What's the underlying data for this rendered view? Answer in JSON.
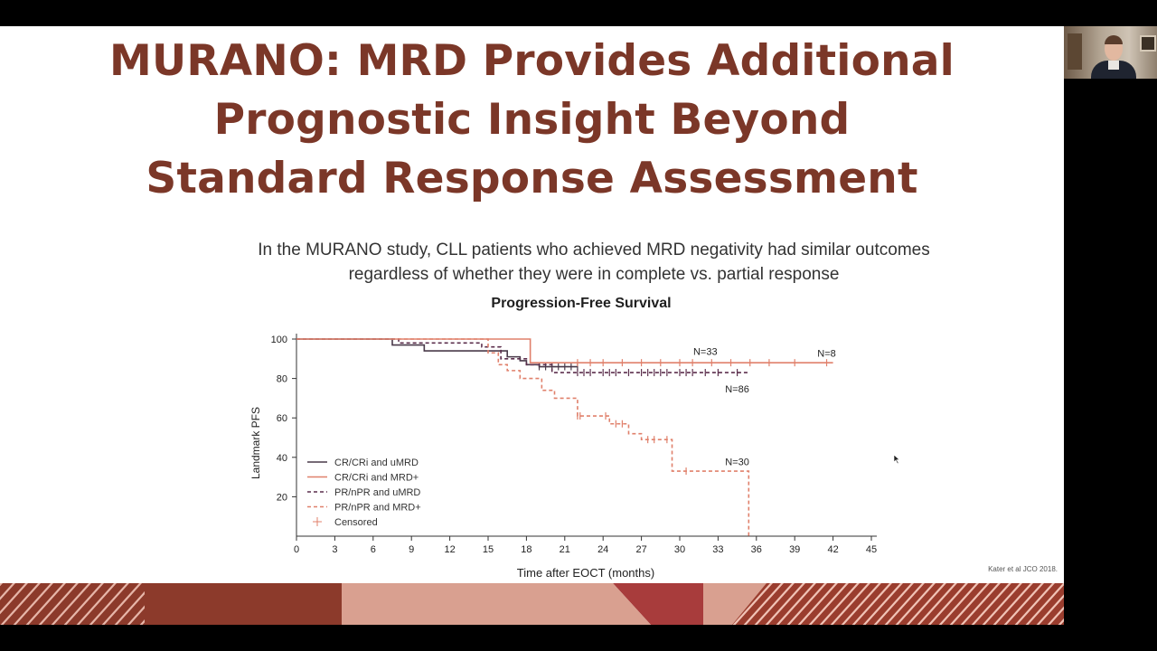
{
  "slide": {
    "title_lines": [
      "MURANO: MRD Provides Additional",
      "Prognostic Insight Beyond",
      "Standard Response Assessment"
    ],
    "subtitle_lines": [
      "In the MURANO study, CLL patients who achieved MRD negativity had similar outcomes",
      "regardless of whether they were in complete vs. partial response"
    ],
    "citation": "Kater et al  JCO 2018."
  },
  "colors": {
    "title": "#7b3728",
    "cr_umrd": "#4a3a4a",
    "cr_mrdpos": "#e0806b",
    "pr_umrd": "#5c2f4d",
    "pr_mrdpos": "#e0806b",
    "footer_dark": "#8c3a2b",
    "footer_light": "#d9a090",
    "footer_accent": "#a83c3c"
  },
  "icons": {
    "cursor": "mouse-pointer-icon",
    "webcam": "presenter-webcam"
  },
  "chart_data": {
    "type": "line",
    "title": "Progression-Free Survival",
    "xlabel": "Time after EOCT (months)",
    "ylabel": "Landmark PFS",
    "x_ticks": [
      0,
      3,
      6,
      9,
      12,
      15,
      18,
      21,
      24,
      27,
      30,
      33,
      36,
      39,
      42,
      45
    ],
    "y_ticks": [
      20,
      40,
      60,
      80,
      100
    ],
    "xlim": [
      0,
      45
    ],
    "ylim": [
      0,
      100
    ],
    "legend_position": "bottom-left",
    "series": [
      {
        "name": "CR/CRi and uMRD",
        "style": "solid",
        "color": "#4a3a4a",
        "x": [
          0,
          6,
          7.5,
          10,
          14.5,
          16.5,
          17.5,
          18,
          19,
          20,
          22
        ],
        "y": [
          100,
          100,
          97,
          94,
          94,
          91,
          89,
          87,
          86,
          86,
          86
        ],
        "censored_x": [
          19,
          19.5,
          20,
          20.5,
          21,
          21.5,
          22
        ]
      },
      {
        "name": "CR/CRi and MRD+",
        "style": "solid",
        "color": "#e0806b",
        "x": [
          0,
          18.3,
          18.3,
          42
        ],
        "y": [
          100,
          100,
          88,
          88
        ],
        "censored_x": [
          22,
          23,
          24,
          25.5,
          27,
          28.5,
          30,
          31,
          32.5,
          34,
          35.5,
          37,
          39,
          41.5
        ]
      },
      {
        "name": "PR/nPR and uMRD",
        "style": "dashed",
        "color": "#5c2f4d",
        "x": [
          0,
          6,
          8,
          14.5,
          16,
          18,
          20,
          35.5
        ],
        "y": [
          100,
          100,
          98,
          96,
          90,
          87,
          83,
          83
        ],
        "censored_x": [
          22,
          22.5,
          23,
          24,
          24.5,
          25,
          26,
          27,
          27.5,
          28,
          28.5,
          29,
          30,
          30.5,
          31,
          32,
          33,
          34.5
        ]
      },
      {
        "name": "PR/nPR and MRD+",
        "style": "dashed",
        "color": "#e0806b",
        "x": [
          0,
          6,
          15,
          15.8,
          16.5,
          17.5,
          18.2,
          19.2,
          20.2,
          22,
          24.5,
          26,
          27,
          29,
          29.4,
          32,
          35.4,
          35.4
        ],
        "y": [
          100,
          100,
          93,
          87,
          84,
          80,
          80,
          74,
          70,
          61,
          57,
          52,
          49,
          49,
          33,
          33,
          33,
          0
        ],
        "censored_x": [
          22,
          22.2,
          24.2,
          25,
          25.5,
          27.5,
          28,
          29,
          30.5
        ]
      }
    ],
    "censored_label": "Censored",
    "annotations": [
      {
        "text": "N=33",
        "x": 32,
        "y": 92
      },
      {
        "text": "N=8",
        "x": 41.5,
        "y": 91
      },
      {
        "text": "N=86",
        "x": 34.5,
        "y": 73
      },
      {
        "text": "N=30",
        "x": 34.5,
        "y": 36
      }
    ]
  }
}
